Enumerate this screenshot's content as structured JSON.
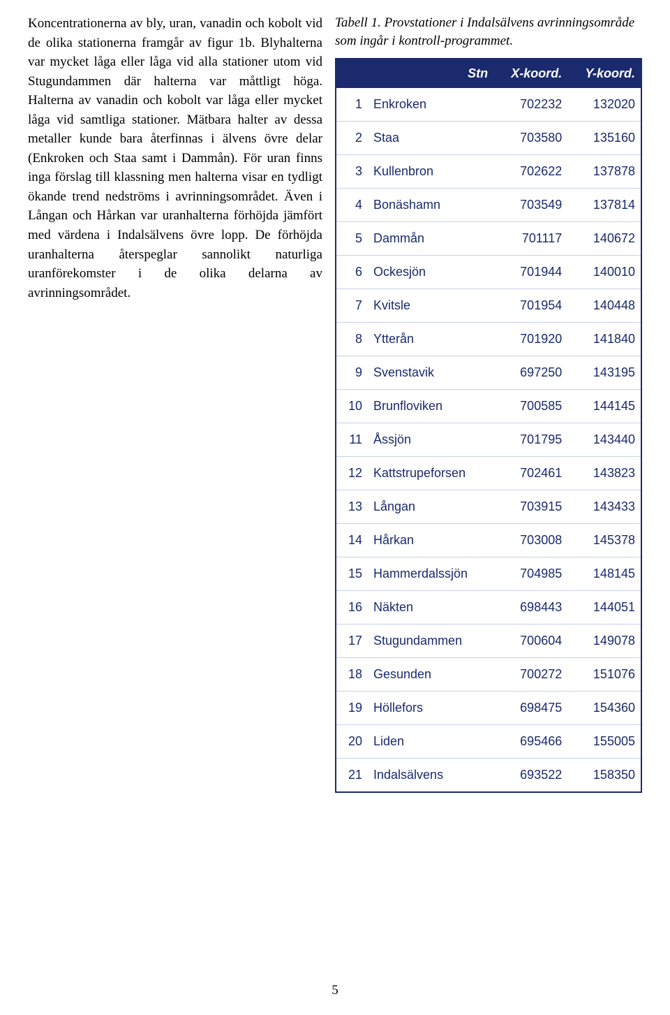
{
  "body_text": "Koncentrationerna av bly, uran, vanadin och kobolt vid de olika stationerna framgår av figur 1b. Blyhalterna var mycket låga eller låga vid alla stationer utom vid Stugundammen där halterna var måttligt höga. Halterna av vanadin och kobolt var låga eller mycket låga vid samtliga stationer. Mätbara halter av dessa metaller kunde bara återfinnas i älvens övre delar (Enkroken och Staa samt i Dammån). För uran finns inga förslag till klassning men halterna visar en tydligt ökande trend nedströms i avrinningsområdet. Även i Långan och Hårkan var uranhalterna förhöjda jämfört med värdena i Indalsälvens övre lopp. De förhöjda uranhalterna återspeglar sannolikt naturliga uranförekomster i de olika delarna av avrinningsområdet.",
  "table_caption": "Tabell 1. Provstationer i Indalsälvens avrinningsområde som ingår i kontroll-programmet.",
  "table": {
    "headers": {
      "stn": "Stn",
      "x": "X-koord.",
      "y": "Y-koord."
    },
    "rows": [
      {
        "n": "1",
        "name": "Enkroken",
        "x": "702232",
        "y": "132020"
      },
      {
        "n": "2",
        "name": "Staa",
        "x": "703580",
        "y": "135160"
      },
      {
        "n": "3",
        "name": "Kullenbron",
        "x": "702622",
        "y": "137878"
      },
      {
        "n": "4",
        "name": "Bonäshamn",
        "x": "703549",
        "y": "137814"
      },
      {
        "n": "5",
        "name": "Dammån",
        "x": "701117",
        "y": "140672"
      },
      {
        "n": "6",
        "name": "Ockesjön",
        "x": "701944",
        "y": "140010"
      },
      {
        "n": "7",
        "name": "Kvitsle",
        "x": "701954",
        "y": "140448"
      },
      {
        "n": "8",
        "name": "Ytterån",
        "x": "701920",
        "y": "141840"
      },
      {
        "n": "9",
        "name": "Svenstavik",
        "x": "697250",
        "y": "143195"
      },
      {
        "n": "10",
        "name": "Brunfloviken",
        "x": "700585",
        "y": "144145"
      },
      {
        "n": "11",
        "name": "Åssjön",
        "x": "701795",
        "y": "143440"
      },
      {
        "n": "12",
        "name": "Kattstrupeforsen",
        "x": "702461",
        "y": "143823"
      },
      {
        "n": "13",
        "name": "Långan",
        "x": "703915",
        "y": "143433"
      },
      {
        "n": "14",
        "name": "Hårkan",
        "x": "703008",
        "y": "145378"
      },
      {
        "n": "15",
        "name": "Hammerdalssjön",
        "x": "704985",
        "y": "148145"
      },
      {
        "n": "16",
        "name": "Näkten",
        "x": "698443",
        "y": "144051"
      },
      {
        "n": "17",
        "name": "Stugundammen",
        "x": "700604",
        "y": "149078"
      },
      {
        "n": "18",
        "name": "Gesunden",
        "x": "700272",
        "y": "151076"
      },
      {
        "n": "19",
        "name": "Höllefors",
        "x": "698475",
        "y": "154360"
      },
      {
        "n": "20",
        "name": "Liden",
        "x": "695466",
        "y": "155005"
      },
      {
        "n": "21",
        "name": "Indalsälvens",
        "x": "693522",
        "y": "158350"
      }
    ],
    "header_bg": "#1a2a6c",
    "header_fg": "#ffffff",
    "cell_fg": "#1a2a6c",
    "row_border": "#c9d0e8"
  },
  "page_number": "5"
}
